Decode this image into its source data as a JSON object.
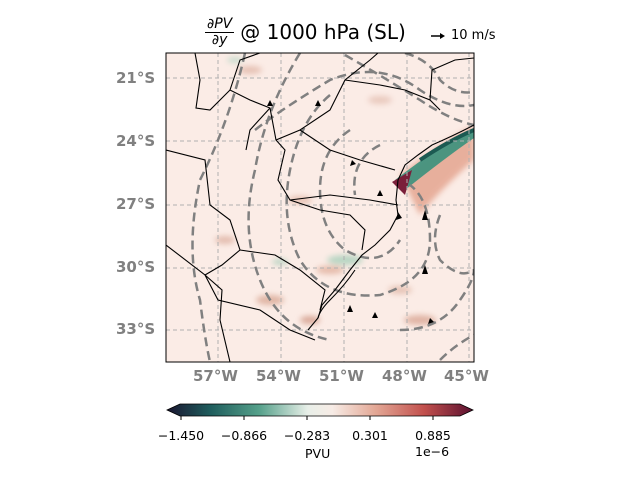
{
  "title": {
    "numerator": "∂PV",
    "denominator": "∂y",
    "text": "@ 1000 hPa (SL)"
  },
  "vector_key": {
    "label": "10 m/s"
  },
  "map": {
    "lat_ticks": [
      "21°S",
      "24°S",
      "27°S",
      "30°S",
      "33°S"
    ],
    "lon_ticks": [
      "57°W",
      "54°W",
      "51°W",
      "48°W",
      "45°W"
    ]
  },
  "colorbar": {
    "ticks": [
      "−1.450",
      "−0.866",
      "−0.283",
      "0.301",
      "0.885"
    ],
    "label": "PVU",
    "exponent": "1e−6",
    "colors": [
      "#1a1530",
      "#1e5c5c",
      "#55a08a",
      "#e8efe8",
      "#f7ece6",
      "#e3a896",
      "#c2504d",
      "#5a1030"
    ]
  }
}
